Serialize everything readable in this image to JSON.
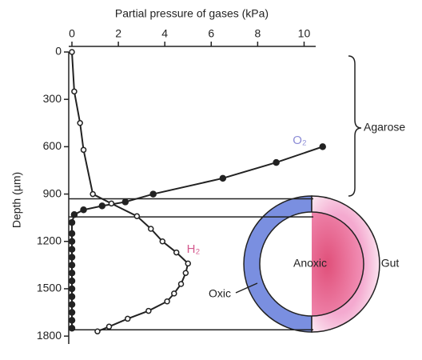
{
  "chart_data": {
    "type": "line",
    "title": "Partial pressure of gases (kPa)",
    "y_label": "Depth (µm)",
    "xlim": [
      0,
      10.5
    ],
    "xticks": [
      0,
      2,
      4,
      6,
      8,
      10
    ],
    "ylim": [
      0,
      1850
    ],
    "yticks": [
      0,
      300,
      600,
      900,
      1200,
      1500,
      1800
    ],
    "y_inverted": true,
    "series": [
      {
        "name": "O₂",
        "color": "#222222",
        "label_color": "#8c8cd6",
        "marker": "filled",
        "x": [
          10.8,
          8.8,
          6.5,
          3.5,
          2.3,
          1.3,
          0.5,
          0.1,
          0,
          0,
          0,
          0,
          0,
          0,
          0,
          0,
          0,
          0,
          0,
          0,
          0,
          0
        ],
        "y": [
          600,
          700,
          800,
          900,
          950,
          975,
          1000,
          1030,
          1080,
          1150,
          1200,
          1250,
          1300,
          1350,
          1400,
          1450,
          1500,
          1550,
          1600,
          1650,
          1700,
          1750
        ]
      },
      {
        "name": "H₂",
        "color": "#222222",
        "label_color": "#d45a8e",
        "marker": "open",
        "x": [
          0,
          0.1,
          0.35,
          0.5,
          0.9,
          1.7,
          2.8,
          3.4,
          3.9,
          4.5,
          5.0,
          4.9,
          4.7,
          4.4,
          4.1,
          3.3,
          2.4,
          1.6,
          1.1
        ],
        "y": [
          0,
          250,
          450,
          620,
          900,
          960,
          1040,
          1120,
          1200,
          1270,
          1340,
          1400,
          1470,
          1530,
          1580,
          1640,
          1690,
          1740,
          1770
        ]
      }
    ],
    "reference_lines": [
      930,
      1045,
      1760
    ],
    "annotations": {
      "agarose": "Agarose",
      "anoxic": "Anoxic",
      "gut": "Gut",
      "oxic": "Oxic"
    }
  }
}
